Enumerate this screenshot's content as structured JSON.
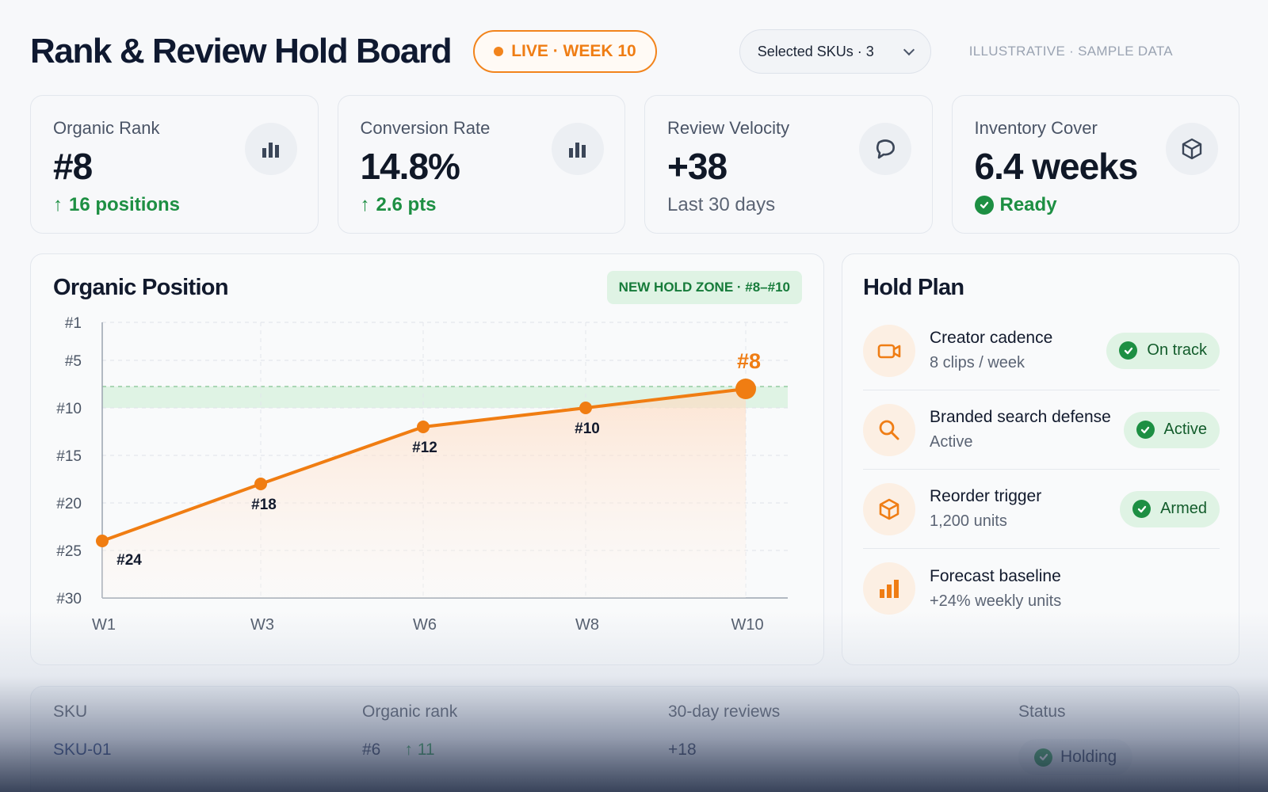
{
  "header": {
    "title": "Rank & Review Hold Board",
    "live_label": "LIVE · WEEK 10",
    "selected_skus": "Selected SKUs · 3",
    "watermark": "ILLUSTRATIVE · SAMPLE DATA"
  },
  "kpis": [
    {
      "label": "Organic Rank",
      "value": "#8",
      "sub": "16 positions",
      "icon": "bar-chart-icon",
      "trend": "up"
    },
    {
      "label": "Conversion Rate",
      "value": "14.8%",
      "sub": "2.6 pts",
      "icon": "bar-chart-icon",
      "trend": "up"
    },
    {
      "label": "Review Velocity",
      "value": "+38",
      "sub": "Last 30 days",
      "icon": "chat-bubble-icon",
      "trend": "none"
    },
    {
      "label": "Inventory Cover",
      "value": "6.4 weeks",
      "sub": "Ready",
      "icon": "box-icon",
      "trend": "ready"
    }
  ],
  "chart": {
    "title": "Organic Position",
    "zone_label": "NEW HOLD ZONE · #8–#10",
    "y_ticks": [
      "#1",
      "#5",
      "#10",
      "#15",
      "#20",
      "#25",
      "#30"
    ],
    "x_ticks": [
      "W1",
      "W3",
      "W6",
      "W8",
      "W10"
    ]
  },
  "chart_data": {
    "type": "line",
    "title": "Organic Position",
    "x": [
      "W1",
      "W3",
      "W6",
      "W8",
      "W10"
    ],
    "series": [
      {
        "values": [
          24,
          18,
          12,
          10,
          8
        ],
        "labels": [
          "#24",
          "#18",
          "#12",
          "#10",
          "#8"
        ]
      }
    ],
    "ylim": [
      1,
      30
    ],
    "y_reversed": true,
    "hold_zone": [
      8,
      10
    ],
    "grid": true,
    "colors": {
      "line": "#f07d12",
      "zone": "#dff3e4",
      "zone_border": "#69b67a"
    }
  },
  "hold_plan": {
    "title": "Hold Plan",
    "items": [
      {
        "name": "Creator cadence",
        "detail": "8 clips / week",
        "status": "On track",
        "icon": "video-camera-icon"
      },
      {
        "name": "Branded search defense",
        "detail": "Active",
        "status": "Active",
        "icon": "magnifier-icon"
      },
      {
        "name": "Reorder trigger",
        "detail": "1,200 units",
        "status": "Armed",
        "icon": "box-icon"
      },
      {
        "name": "Forecast baseline",
        "detail": "+24% weekly units",
        "status": "",
        "icon": "bar-chart-icon"
      }
    ]
  },
  "table": {
    "headers": [
      "SKU",
      "Organic rank",
      "30-day reviews",
      "Status"
    ],
    "rows": [
      {
        "sku": "SKU-01",
        "rank": "#6",
        "delta": "11",
        "reviews": "+18",
        "status": "Holding"
      }
    ]
  }
}
